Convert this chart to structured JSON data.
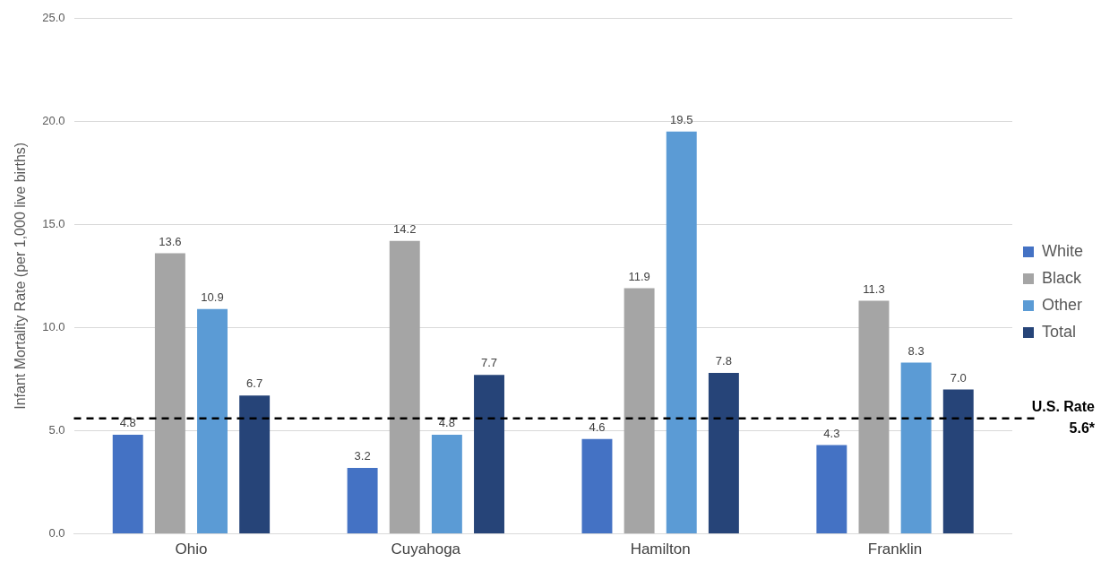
{
  "chart_data": {
    "type": "bar",
    "ylabel": "Infant Mortality Rate (per 1,000 live births)",
    "categories": [
      "Ohio",
      "Cuyahoga",
      "Hamilton",
      "Franklin"
    ],
    "series": [
      {
        "name": "White",
        "color": "#4472c4",
        "values": [
          4.8,
          3.2,
          4.6,
          4.3
        ],
        "value_labels": [
          "4.8",
          "3.2",
          "4.6",
          "4.3"
        ]
      },
      {
        "name": "Black",
        "color": "#a5a5a5",
        "values": [
          13.6,
          14.2,
          11.9,
          11.3
        ],
        "value_labels": [
          "13.6",
          "14.2",
          "11.9",
          "11.3"
        ]
      },
      {
        "name": "Other",
        "color": "#5b9bd5",
        "values": [
          10.9,
          4.8,
          19.5,
          8.3
        ],
        "value_labels": [
          "10.9",
          "4.8",
          "19.5",
          "8.3"
        ]
      },
      {
        "name": "Total",
        "color": "#264478",
        "values": [
          6.7,
          7.7,
          7.8,
          7.0
        ],
        "value_labels": [
          "6.7",
          "7.7",
          "7.8",
          "7.0"
        ]
      }
    ],
    "ylim": [
      0,
      25
    ],
    "yticks": [
      {
        "value": 0,
        "label": "0.0"
      },
      {
        "value": 5,
        "label": "5.0"
      },
      {
        "value": 10,
        "label": "10.0"
      },
      {
        "value": 15,
        "label": "15.0"
      },
      {
        "value": 20,
        "label": "20.0"
      },
      {
        "value": 25,
        "label": "25.0"
      }
    ],
    "grid": "y",
    "legend": "right",
    "ref_lines": [
      {
        "axis": "y",
        "value": 5.6,
        "label": "U.S. Rate 5.6*",
        "color": "#000000",
        "line_style": "dashed"
      }
    ]
  }
}
